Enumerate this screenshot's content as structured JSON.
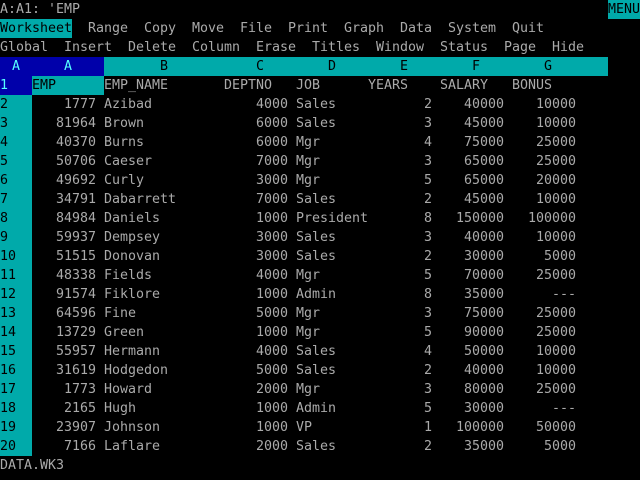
{
  "control_panel": {
    "cell_contents": "A:A1: 'EMP",
    "mode_indicator": "MENU",
    "menu_items": [
      "Worksheet",
      "Range",
      "Copy",
      "Move",
      "File",
      "Print",
      "Graph",
      "Data",
      "System",
      "Quit"
    ],
    "selected_menu_item": "Worksheet",
    "submenu_description": [
      "Global",
      "Insert",
      "Delete",
      "Column",
      "Erase",
      "Titles",
      "Window",
      "Status",
      "Page",
      "Hide"
    ]
  },
  "sheet": {
    "sheet_letter": "A",
    "current_cell": "A1",
    "column_headers": [
      "A",
      "B",
      "C",
      "D",
      "E",
      "F",
      "G"
    ],
    "header_row": {
      "row": "1",
      "cells": [
        "EMP",
        "EMP_NAME",
        "DEPTNO",
        "JOB",
        "YEARS",
        "SALARY",
        "BONUS"
      ]
    },
    "rows": [
      {
        "row": "2",
        "cells": [
          "1777",
          "Azibad",
          "4000",
          "Sales",
          "2",
          "40000",
          "10000"
        ]
      },
      {
        "row": "3",
        "cells": [
          "81964",
          "Brown",
          "6000",
          "Sales",
          "3",
          "45000",
          "10000"
        ]
      },
      {
        "row": "4",
        "cells": [
          "40370",
          "Burns",
          "6000",
          "Mgr",
          "4",
          "75000",
          "25000"
        ]
      },
      {
        "row": "5",
        "cells": [
          "50706",
          "Caeser",
          "7000",
          "Mgr",
          "3",
          "65000",
          "25000"
        ]
      },
      {
        "row": "6",
        "cells": [
          "49692",
          "Curly",
          "3000",
          "Mgr",
          "5",
          "65000",
          "20000"
        ]
      },
      {
        "row": "7",
        "cells": [
          "34791",
          "Dabarrett",
          "7000",
          "Sales",
          "2",
          "45000",
          "10000"
        ]
      },
      {
        "row": "8",
        "cells": [
          "84984",
          "Daniels",
          "1000",
          "President",
          "8",
          "150000",
          "100000"
        ]
      },
      {
        "row": "9",
        "cells": [
          "59937",
          "Dempsey",
          "3000",
          "Sales",
          "3",
          "40000",
          "10000"
        ]
      },
      {
        "row": "10",
        "cells": [
          "51515",
          "Donovan",
          "3000",
          "Sales",
          "2",
          "30000",
          "5000"
        ]
      },
      {
        "row": "11",
        "cells": [
          "48338",
          "Fields",
          "4000",
          "Mgr",
          "5",
          "70000",
          "25000"
        ]
      },
      {
        "row": "12",
        "cells": [
          "91574",
          "Fiklore",
          "1000",
          "Admin",
          "8",
          "35000",
          "---"
        ]
      },
      {
        "row": "13",
        "cells": [
          "64596",
          "Fine",
          "5000",
          "Mgr",
          "3",
          "75000",
          "25000"
        ]
      },
      {
        "row": "14",
        "cells": [
          "13729",
          "Green",
          "1000",
          "Mgr",
          "5",
          "90000",
          "25000"
        ]
      },
      {
        "row": "15",
        "cells": [
          "55957",
          "Hermann",
          "4000",
          "Sales",
          "4",
          "50000",
          "10000"
        ]
      },
      {
        "row": "16",
        "cells": [
          "31619",
          "Hodgedon",
          "5000",
          "Sales",
          "2",
          "40000",
          "10000"
        ]
      },
      {
        "row": "17",
        "cells": [
          "1773",
          "Howard",
          "2000",
          "Mgr",
          "3",
          "80000",
          "25000"
        ]
      },
      {
        "row": "18",
        "cells": [
          "2165",
          "Hugh",
          "1000",
          "Admin",
          "5",
          "30000",
          "---"
        ]
      },
      {
        "row": "19",
        "cells": [
          "23907",
          "Johnson",
          "1000",
          "VP",
          "1",
          "100000",
          "50000"
        ]
      },
      {
        "row": "20",
        "cells": [
          "7166",
          "Laflare",
          "2000",
          "Sales",
          "2",
          "35000",
          "5000"
        ]
      }
    ]
  },
  "status_line": {
    "filename": "DATA.WK3"
  },
  "colors": {
    "cyan": "#00aaaa",
    "blue": "#0000aa",
    "text": "#aaaaaa",
    "background": "#000000"
  }
}
